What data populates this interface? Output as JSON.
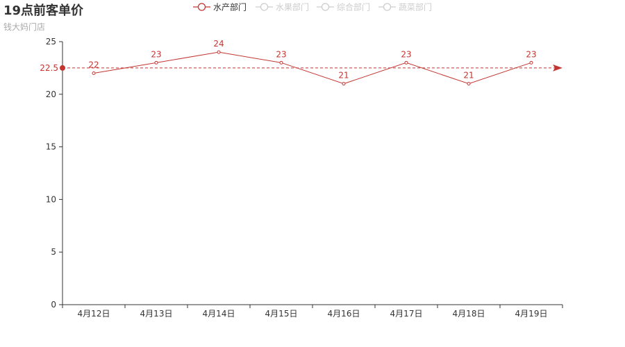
{
  "title": "19点前客单价",
  "subtitle": "钱大妈门店",
  "colors": {
    "series_active": "#c23531",
    "legend_inactive": "#cccccc",
    "axis": "#333333",
    "label_text": "#333333"
  },
  "legend": [
    {
      "name": "水产部门",
      "active": true
    },
    {
      "name": "水果部门",
      "active": false
    },
    {
      "name": "综合部门",
      "active": false
    },
    {
      "name": "蔬菜部门",
      "active": false
    }
  ],
  "chart_data": {
    "type": "line",
    "categories": [
      "4月12日",
      "4月13日",
      "4月14日",
      "4月15日",
      "4月16日",
      "4月17日",
      "4月18日",
      "4月19日"
    ],
    "series": [
      {
        "name": "水产部门",
        "values": [
          22,
          23,
          24,
          23,
          21,
          23,
          21,
          23
        ]
      }
    ],
    "ylim": [
      0,
      25
    ],
    "y_ticks": [
      0,
      5,
      10,
      15,
      20,
      25
    ],
    "mark_line": {
      "value": 22.5,
      "label": "22.5",
      "style": "dashed"
    },
    "grid": false,
    "legend_position": "top-center"
  }
}
